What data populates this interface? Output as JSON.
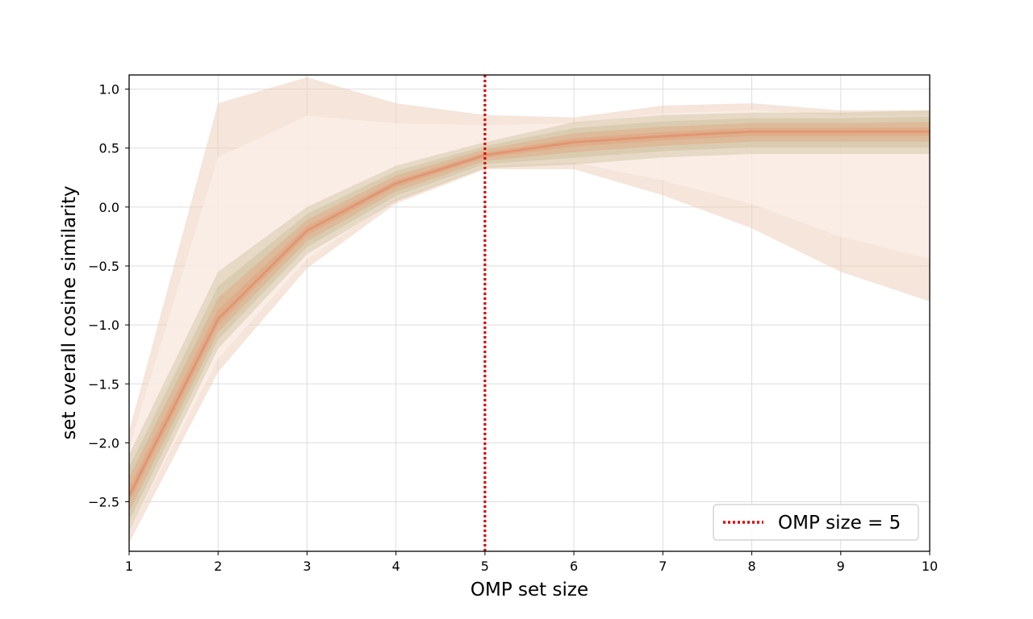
{
  "chart_data": {
    "type": "area",
    "title": "",
    "xlabel": "OMP set size",
    "ylabel": "set overall cosine similarity",
    "xlim": [
      1,
      10
    ],
    "ylim": [
      -2.92,
      1.12
    ],
    "x_ticks": [
      1,
      2,
      3,
      4,
      5,
      6,
      7,
      8,
      9,
      10
    ],
    "y_ticks": [
      {
        "value": 1.0,
        "label": "1.0"
      },
      {
        "value": 0.5,
        "label": "0.5"
      },
      {
        "value": 0.0,
        "label": "0.0"
      },
      {
        "value": -0.5,
        "label": "−0.5"
      },
      {
        "value": -1.0,
        "label": "−1.0"
      },
      {
        "value": -1.5,
        "label": "−1.5"
      },
      {
        "value": -2.0,
        "label": "−2.0"
      },
      {
        "value": -2.5,
        "label": "−2.5"
      }
    ],
    "grid": true,
    "x": [
      1,
      2,
      3,
      4,
      5,
      6,
      7,
      8,
      9,
      10
    ],
    "envelope_upper": [
      -1.9,
      0.88,
      1.1,
      0.88,
      0.78,
      0.76,
      0.86,
      0.88,
      0.82,
      0.82
    ],
    "envelope_lower": [
      -2.85,
      -1.4,
      -0.52,
      0.03,
      0.32,
      0.32,
      0.1,
      -0.18,
      -0.55,
      -0.8
    ],
    "core_upper": [
      -2.1,
      -0.55,
      0.0,
      0.35,
      0.55,
      0.72,
      0.78,
      0.8,
      0.8,
      0.82
    ],
    "core_lower": [
      -2.75,
      -1.2,
      -0.4,
      0.05,
      0.33,
      0.36,
      0.42,
      0.45,
      0.45,
      0.45
    ],
    "median": [
      -2.45,
      -0.95,
      -0.2,
      0.2,
      0.44,
      0.55,
      0.6,
      0.64,
      0.64,
      0.64
    ],
    "colors": {
      "envelope": "#ecd0bc",
      "core_green": "#c2b48a",
      "core_orange": "#e0a07a",
      "median": "#e8825e",
      "vline": "#e00000"
    },
    "vline": {
      "x": 5,
      "label": "OMP size = 5",
      "style": "dotted"
    },
    "legend": {
      "placement": "lower-right",
      "entries": [
        "OMP size = 5"
      ]
    }
  }
}
